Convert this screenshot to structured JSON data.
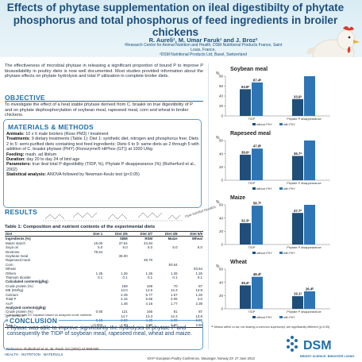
{
  "header": {
    "title": "Effects of phytase supplementation on ileal digestibilty of phytate phosphorus and total phosphorus of feed ingredients in broiler chickens",
    "authors": "R. Aureli¹, M. Umar Faruk¹ and J. Broz²",
    "affiliation_1": "¹Research Centre for Animal Nutrition and Health, DSM Nutritional Products France, Saint Louis, France,",
    "affiliation_2": "²DSM Nutritional Products Ltd, Basel, Switzerland"
  },
  "intro": "The effectiveness of microbial phytase in releasing a significant proportion of bound P to improve P bioavailability in poultry diets is now well documented. Most studies provided information about the phytase effects on phytate hydrolysis and total P utilization in complete broiler diets.",
  "sections": {
    "objective": "OBJECTIVE",
    "methods": "MATERIALS & METHODS",
    "results": "RESULTS",
    "conclusion": "CONCLUSION"
  },
  "objective_text": "To investigate the effect of a heat stable phytase derived from C. braakii on true digestibility of P and on phytate dephosphorylation of soybean meal, rapeseed meal, corn and wheat in broiler chickens.",
  "methods": [
    {
      "label": "Animals:",
      "text": "10 x 6 male broilers (Ross PM3) / treatment"
    },
    {
      "label": "Treatments",
      "text": ": 9 dietary treatments (Table 1): Diet 1: synthetic diet, nitrogen and phosphorus free; Diets 2 to 5: semi-purified diets containing test feed ingredients; Diets 6 to 9: same diets as 2 through 5 with addition of C. braakii phytase (PHY) (Ronozyme® HiPhos (GT)) at 1000 U/kg"
    },
    {
      "label": "Feeding:",
      "text": "mash, ad libitum"
    },
    {
      "label": "Duration:",
      "text": "day 20 to day 24 of bird age"
    },
    {
      "label": "Parameters:",
      "text": "true ileal total P digestibility (TIDP, %), Phytate P disappearance (%) (Rutherfurd et al., 2002)"
    },
    {
      "label": "Statistical analysis:",
      "text": "ANOVA followed by Newman-Keuls test (p<0.05)"
    }
  ],
  "phytase_label": "myo-inositol hexakis",
  "table": {
    "title": "Table 1: Composition and nutrient contents of the experimental diets",
    "headers": [
      "Diet",
      "Diet 1",
      "Diet 2/6",
      "Diet 3/7",
      "Diet 4/8",
      "Diet 5/9"
    ],
    "rows": [
      {
        "cells": [
          "Ingredients (%)",
          "",
          "SBM",
          "RSM",
          "Maize",
          "Wheat"
        ],
        "sub": true
      },
      {
        "cells": [
          "Maize starch",
          "15.00",
          "37.64",
          "44.94",
          "",
          ""
        ]
      },
      {
        "cells": [
          "Soya oil",
          "5.0",
          "5.0",
          "5.0",
          "5.0",
          "5.0"
        ]
      },
      {
        "cells": [
          "Dextrose",
          "78.64",
          "",
          "",
          "",
          ""
        ]
      },
      {
        "cells": [
          "Soybean meal",
          "",
          "36.00",
          "",
          "",
          ""
        ]
      },
      {
        "cells": [
          "Rapeseed meal",
          "",
          "",
          "48.70",
          "",
          ""
        ]
      },
      {
        "cells": [
          "Corn",
          "",
          "",
          "",
          "93.64",
          ""
        ]
      },
      {
        "cells": [
          "Wheat",
          "",
          "",
          "",
          "",
          "93.64"
        ]
      },
      {
        "cells": [
          "Others",
          "1.26",
          "1.26",
          "1.26",
          "1.26",
          "1.26"
        ]
      },
      {
        "cells": [
          "Titanium dioxide",
          "0.1",
          "0.1",
          "0.1",
          "0.1",
          "0.1"
        ]
      },
      {
        "cells": [
          "Calculated contents(g/kg)",
          "",
          "",
          "",
          "",
          ""
        ],
        "sub": true
      },
      {
        "cells": [
          "Crude protein (%)",
          "",
          "169",
          "169",
          "70",
          "87"
        ]
      },
      {
        "cells": [
          "ME (MJ/kg)",
          "",
          "14.0",
          "12.6",
          "14.3",
          "13.8"
        ]
      },
      {
        "cells": [
          "Calcium",
          "",
          "2.49",
          "5.77",
          "1.57",
          "1.26"
        ]
      },
      {
        "cells": [
          "Total P",
          "",
          "2.16",
          "5.55",
          "2.06",
          "3.0"
        ]
      },
      {
        "cells": [
          "Av.P",
          "",
          "1.48",
          "4.16",
          "1.77",
          "2.39"
        ]
      },
      {
        "cells": [
          "Analyzed contents(g/kg)",
          "",
          "",
          "",
          "",
          ""
        ],
        "sub": true
      },
      {
        "cells": [
          "Crude protein (%)",
          "0.50",
          "121",
          "166",
          "81",
          "87"
        ]
      },
      {
        "cells": [
          "GE (MJ/kg)*",
          "",
          "14.7",
          "13.3",
          "14.3",
          "13.9"
        ]
      },
      {
        "cells": [
          "Calcium",
          "0.18",
          "2.20",
          "4.40",
          "1.80",
          "2.00"
        ]
      },
      {
        "cells": [
          "Total P",
          "0.003",
          "1.90",
          "4.80",
          "2.50",
          "2.60"
        ]
      }
    ],
    "note": "* Calculated with EC equation based on analyzed crude nutrients"
  },
  "conclusion_text": "Phytase was able to improve significantly the hydrolysis of phytate P and consequently the TIDP of soybean meal, rapeseed meal, wheat and maize.",
  "reference": "Reference: Rutherfurd et al., Br. Poult. Sci (2002) 44:598-606",
  "footer_tagline": "HEALTH · NUTRITION · MATERIALS",
  "conference": "XXVᵗʰ European Poultry Conference, Stavanger, Norway 23- 27 June 2013",
  "dsm": {
    "logo": "DSM",
    "tagline": "BRIGHT SCIENCE. BRIGHTER LIVING."
  },
  "footnote": "ᵃᵇ Means within a row, not sharing a common superscript, are significantly different (p<0.05)",
  "colors": {
    "without_phy": "#1f4e79",
    "with_phy": "#2e75b6"
  },
  "chart_data": [
    {
      "type": "bar",
      "title": "Soybean meal",
      "categories": [
        "TIDP",
        "Phytate P disappearance"
      ],
      "series": [
        {
          "name": "without PHY",
          "values": [
            53.8,
            33.9
          ]
        },
        {
          "name": "with PHY",
          "values": [
            67.4,
            80.0
          ]
        }
      ],
      "labels": [
        [
          "53.8ᵃ",
          "33.9ᵃ"
        ],
        [
          "67.4ᵇ",
          ""
        ]
      ],
      "ylim": [
        0,
        80
      ],
      "yticks": [
        0,
        20,
        40,
        60,
        80
      ],
      "ylabel": "%"
    },
    {
      "type": "bar",
      "title": "Rapeseed meal",
      "categories": [
        "TIDP",
        "Phytate P disappearance"
      ],
      "series": [
        {
          "name": "without PHY",
          "values": [
            38.6,
            36.7
          ]
        },
        {
          "name": "with PHY",
          "values": [
            47.8,
            60.0
          ]
        }
      ],
      "labels": [
        [
          "38.6ᵃ",
          "36.7ᵃ"
        ],
        [
          "47.8ᵇ",
          ""
        ]
      ],
      "ylim": [
        0,
        60
      ],
      "yticks": [
        0,
        20,
        40,
        60
      ],
      "ylabel": "%"
    },
    {
      "type": "bar",
      "title": "Maize",
      "categories": [
        "TIDP",
        "Phytate P disappearance"
      ],
      "series": [
        {
          "name": "without PHY",
          "values": [
            32.3,
            47.7
          ]
        },
        {
          "name": "with PHY",
          "values": [
            58.7,
            60.0
          ]
        }
      ],
      "labels": [
        [
          "32.3ᵃ",
          "47.7ᵃ"
        ],
        [
          "58.7ᵇ",
          ""
        ]
      ],
      "ylim": [
        0,
        60
      ],
      "yticks": [
        0,
        20,
        40,
        60
      ],
      "ylabel": "%"
    },
    {
      "type": "bar",
      "title": "Wheat",
      "categories": [
        "TIDP",
        "Phytate P disappearance"
      ],
      "series": [
        {
          "name": "without PHY",
          "values": [
            35.4,
            19.1
          ]
        },
        {
          "name": "with PHY",
          "values": [
            48.4,
            26.4
          ]
        }
      ],
      "labels": [
        [
          "35.4ᵃ",
          "19.1ᵃ"
        ],
        [
          "48.4ᵇ",
          "26.4ᵇ"
        ]
      ],
      "ylim": [
        0,
        60
      ],
      "yticks": [
        0,
        20,
        40,
        60
      ],
      "ylabel": "%"
    }
  ]
}
